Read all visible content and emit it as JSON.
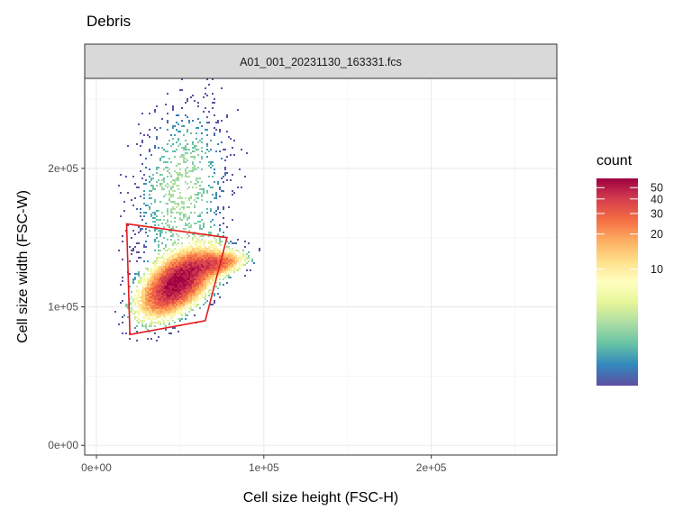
{
  "chart_data": {
    "type": "heatmap",
    "title": "Debris",
    "facet_label": "A01_001_20231130_163331.fcs",
    "xlabel": "Cell size height (FSC-H)",
    "ylabel": "Cell size width (FSC-W)",
    "xlim": [
      -7000,
      275000
    ],
    "ylim": [
      -7000,
      265000
    ],
    "x_ticks": [
      {
        "value": 0,
        "label": "0e+00"
      },
      {
        "value": 100000,
        "label": "1e+05"
      },
      {
        "value": 200000,
        "label": "2e+05"
      }
    ],
    "y_ticks": [
      {
        "value": 0,
        "label": "0e+00"
      },
      {
        "value": 100000,
        "label": "1e+05"
      },
      {
        "value": 200000,
        "label": "2e+05"
      }
    ],
    "grid": true,
    "legend": {
      "title": "count",
      "placement": "right",
      "scale": "log",
      "breaks": [
        {
          "value": 10,
          "label": "10"
        },
        {
          "value": 20,
          "label": "20"
        },
        {
          "value": 30,
          "label": "30"
        },
        {
          "value": 40,
          "label": "40"
        },
        {
          "value": 50,
          "label": "50"
        }
      ],
      "range": [
        1,
        60
      ],
      "palette": [
        "#5E4FA2",
        "#3288BD",
        "#66C2A5",
        "#ABDDA4",
        "#E6F598",
        "#FFFFBF",
        "#FEE08B",
        "#FDAE61",
        "#F46D43",
        "#D53E4F",
        "#9E0142"
      ]
    },
    "density_clusters": [
      {
        "cx": 48000,
        "cy": 118000,
        "sx": 12000,
        "sy": 13000,
        "rho": 0.55,
        "weight": 1.0
      },
      {
        "cx": 72000,
        "cy": 132000,
        "sx": 9000,
        "sy": 5000,
        "rho": 0.3,
        "weight": 0.45
      },
      {
        "cx": 50000,
        "cy": 185000,
        "sx": 17000,
        "sy": 38000,
        "rho": 0.2,
        "weight": 0.06
      }
    ],
    "peak_count": 60,
    "gate_polygon": [
      {
        "x": 18000,
        "y": 160000
      },
      {
        "x": 78000,
        "y": 150000
      },
      {
        "x": 65000,
        "y": 90000
      },
      {
        "x": 20000,
        "y": 80000
      }
    ],
    "gate_color": "#E41A1C"
  }
}
